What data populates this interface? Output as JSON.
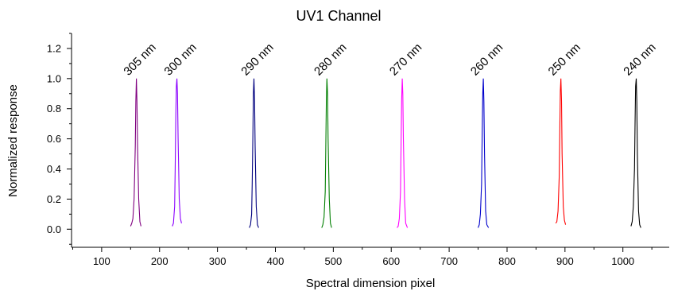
{
  "chart_data": {
    "type": "line",
    "title": "UV1 Channel",
    "xlabel": "Spectral dimension pixel",
    "ylabel": "Normalized response",
    "xlim": [
      48,
      1080
    ],
    "ylim": [
      -0.12,
      1.3
    ],
    "x_ticks": [
      100,
      200,
      300,
      400,
      500,
      600,
      700,
      800,
      900,
      1000
    ],
    "x_tick_labels": [
      "100",
      "200",
      "300",
      "400",
      "500",
      "600",
      "700",
      "800",
      "900",
      "1000"
    ],
    "y_ticks": [
      0.0,
      0.2,
      0.4,
      0.6,
      0.8,
      1.0,
      1.2
    ],
    "y_tick_labels": [
      "0.0",
      "0.2",
      "0.4",
      "0.6",
      "0.8",
      "1.0",
      "1.2"
    ],
    "grid": false,
    "legend": "none",
    "series": [
      {
        "label": "305 nm",
        "color": "#800080",
        "x": [
          150,
          152,
          154,
          156,
          158,
          159,
          160,
          161,
          162,
          164,
          166,
          168
        ],
        "y": [
          0.02,
          0.04,
          0.07,
          0.2,
          0.55,
          0.85,
          1.0,
          0.85,
          0.55,
          0.2,
          0.05,
          0.02
        ]
      },
      {
        "label": "300 nm",
        "color": "#8B00FF",
        "x": [
          222,
          224,
          226,
          227,
          228,
          229,
          230,
          231,
          232,
          234,
          236,
          238
        ],
        "y": [
          0.02,
          0.04,
          0.15,
          0.4,
          0.75,
          0.95,
          1.0,
          0.9,
          0.6,
          0.2,
          0.07,
          0.04
        ]
      },
      {
        "label": "290 nm",
        "color": "#00007F",
        "x": [
          355,
          357,
          359,
          360,
          361,
          362,
          363,
          364,
          365,
          367,
          369,
          371
        ],
        "y": [
          0.01,
          0.03,
          0.1,
          0.3,
          0.6,
          0.9,
          1.0,
          0.85,
          0.55,
          0.15,
          0.03,
          0.01
        ]
      },
      {
        "label": "280 nm",
        "color": "#007F00",
        "x": [
          480,
          482,
          484,
          486,
          487,
          488,
          489,
          490,
          491,
          493,
          495,
          497
        ],
        "y": [
          0.01,
          0.03,
          0.08,
          0.25,
          0.55,
          0.85,
          1.0,
          0.9,
          0.6,
          0.2,
          0.04,
          0.01
        ]
      },
      {
        "label": "270 nm",
        "color": "#FF00FF",
        "x": [
          610,
          612,
          614,
          616,
          617,
          618,
          619,
          620,
          621,
          623,
          625,
          628
        ],
        "y": [
          0.01,
          0.02,
          0.07,
          0.25,
          0.55,
          0.85,
          1.0,
          0.9,
          0.6,
          0.2,
          0.04,
          0.01
        ]
      },
      {
        "label": "260 nm",
        "color": "#0000CC",
        "x": [
          750,
          752,
          754,
          756,
          757,
          758,
          759,
          760,
          761,
          763,
          765,
          768
        ],
        "y": [
          0.01,
          0.03,
          0.1,
          0.3,
          0.6,
          0.9,
          1.0,
          0.85,
          0.5,
          0.12,
          0.03,
          0.01
        ]
      },
      {
        "label": "250 nm",
        "color": "#FF0000",
        "x": [
          884,
          886,
          888,
          890,
          891,
          892,
          893,
          894,
          895,
          897,
          899,
          901
        ],
        "y": [
          0.04,
          0.05,
          0.12,
          0.35,
          0.65,
          0.92,
          1.0,
          0.85,
          0.5,
          0.15,
          0.06,
          0.03
        ]
      },
      {
        "label": "240 nm",
        "color": "#000000",
        "x": [
          1014,
          1016,
          1018,
          1020,
          1021,
          1022,
          1023,
          1024,
          1025,
          1027,
          1029,
          1031
        ],
        "y": [
          0.02,
          0.05,
          0.15,
          0.4,
          0.7,
          0.95,
          1.0,
          0.85,
          0.5,
          0.12,
          0.03,
          0.01
        ]
      }
    ]
  }
}
